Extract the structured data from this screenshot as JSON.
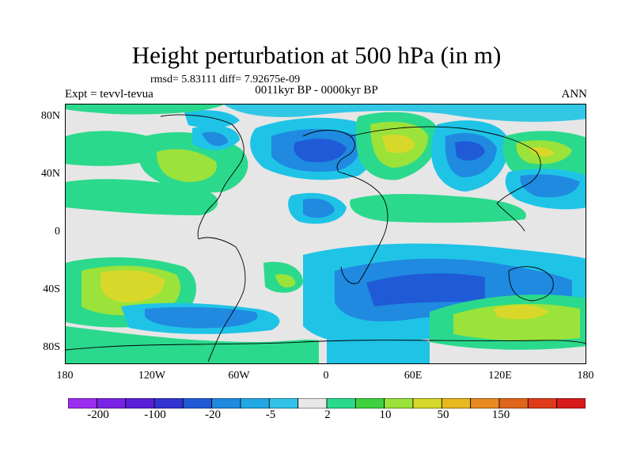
{
  "title": "Height perturbation at 500 hPa (in m)",
  "stats": "rmsd= 5.83111 diff= 7.92675e-09",
  "subtitle": "0011kyr BP - 0000kyr BP",
  "experiment": "Expt = tevvl-tevua",
  "season": "ANN",
  "lat_labels": [
    "80N",
    "40N",
    "0",
    "40S",
    "80S"
  ],
  "lon_labels": [
    "180",
    "120W",
    "60W",
    "0",
    "60E",
    "120E",
    "180"
  ],
  "colorbar": {
    "colors": [
      "#9b2df0",
      "#7a22e6",
      "#5a1fd9",
      "#3333d2",
      "#1f5ad7",
      "#1f8ae0",
      "#22a8e6",
      "#33c3e8",
      "#e8e8e8",
      "#2bd98c",
      "#3fd23f",
      "#9be23a",
      "#d8d82a",
      "#e8b91f",
      "#e88a1f",
      "#e0651a",
      "#e03a1a",
      "#d81c1c"
    ],
    "labels": [
      "-200",
      "-100",
      "-20",
      "-5",
      "2",
      "10",
      "50",
      "150"
    ]
  }
}
